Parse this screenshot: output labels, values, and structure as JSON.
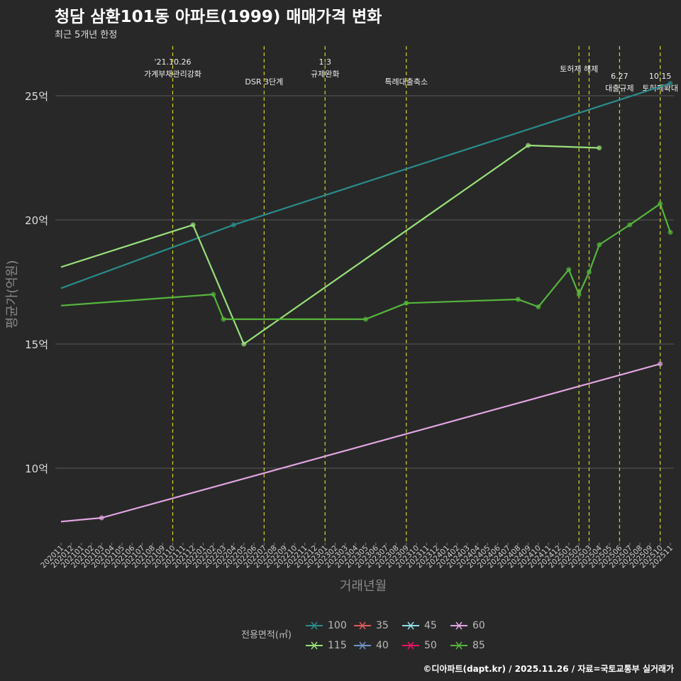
{
  "title": "청담 삼환101동 아파트(1999) 매매가격 변화",
  "subtitle": "최근 5개년 한정",
  "footer": "©디아파트(dapt.kr) / 2025.11.26 / 자료=국토교통부 실거래가",
  "chart_data": {
    "type": "line",
    "title": "청담 삼환101동 아파트(1999) 매매가격 변화",
    "xlabel": "거래년월",
    "ylabel": "평균가(억원)",
    "ylim": [
      7,
      27
    ],
    "yticks": [
      10,
      15,
      20,
      25
    ],
    "ytick_suffix": "억",
    "grid": "horizontal",
    "categories": [
      "202011",
      "202012",
      "202101",
      "202102",
      "202103",
      "202104",
      "202105",
      "202106",
      "202107",
      "202108",
      "202109",
      "202110",
      "202111",
      "202112",
      "202201",
      "202202",
      "202203",
      "202204",
      "202205",
      "202206",
      "202207",
      "202208",
      "202209",
      "202210",
      "202211",
      "202212",
      "202301",
      "202302",
      "202303",
      "202304",
      "202305",
      "202306",
      "202307",
      "202308",
      "202309",
      "202310",
      "202311",
      "202312",
      "202401",
      "202402",
      "202403",
      "202404",
      "202405",
      "202406",
      "202407",
      "202408",
      "202409",
      "202410",
      "202411",
      "202412",
      "202501",
      "202502",
      "202503",
      "202504",
      "202505",
      "202506",
      "202507",
      "202508",
      "202509",
      "202510",
      "202511"
    ],
    "legend_title": "전용면적(㎡)",
    "legend": [
      {
        "name": "100",
        "color": "#2a8c8c"
      },
      {
        "name": "35",
        "color": "#e05a5a"
      },
      {
        "name": "45",
        "color": "#8fdde8"
      },
      {
        "name": "60",
        "color": "#e3a6e3"
      },
      {
        "name": "115",
        "color": "#99e07a"
      },
      {
        "name": "40",
        "color": "#6f93c8"
      },
      {
        "name": "50",
        "color": "#ee1166"
      },
      {
        "name": "85",
        "color": "#55b63c"
      }
    ],
    "series": [
      {
        "name": "100",
        "color": "#2a8c8c",
        "points": [
          [
            "202011",
            17.25
          ],
          [
            "202204",
            19.8
          ],
          [
            "202511",
            25.5
          ]
        ],
        "markers": [
          "202204",
          "202511"
        ]
      },
      {
        "name": "115",
        "color": "#99e07a",
        "points": [
          [
            "202011",
            18.1
          ],
          [
            "202112",
            19.8
          ],
          [
            "202205",
            15.0
          ],
          [
            "202409",
            23.0
          ],
          [
            "202504",
            22.9
          ]
        ],
        "markers": [
          "202112",
          "202205",
          "202409",
          "202504"
        ]
      },
      {
        "name": "85",
        "color": "#55b63c",
        "points": [
          [
            "202011",
            16.55
          ],
          [
            "202202",
            17.0
          ],
          [
            "202203",
            16.0
          ],
          [
            "202305",
            16.0
          ],
          [
            "202309",
            16.65
          ],
          [
            "202408",
            16.8
          ],
          [
            "202410",
            16.5
          ],
          [
            "202501",
            18.0
          ],
          [
            "202502",
            17.0
          ],
          [
            "202503",
            17.9
          ],
          [
            "202504",
            19.0
          ],
          [
            "202507",
            19.8
          ],
          [
            "202510",
            20.65
          ],
          [
            "202511",
            19.5
          ]
        ],
        "markers": [
          "202202",
          "202203",
          "202305",
          "202309",
          "202408",
          "202410",
          "202501",
          "202502",
          "202503",
          "202504",
          "202507",
          "202510",
          "202511"
        ]
      },
      {
        "name": "60",
        "color": "#e3a6e3",
        "points": [
          [
            "202011",
            7.85
          ],
          [
            "202103",
            8.0
          ],
          [
            "202510",
            14.2
          ]
        ],
        "markers": [
          "202103",
          "202510"
        ]
      }
    ],
    "annotations": [
      {
        "x": "202110",
        "lines": [
          "'21.10.26",
          "가계부채관리강화"
        ]
      },
      {
        "x": "202207",
        "lines": [
          "DSR 3단계"
        ]
      },
      {
        "x": "202301",
        "lines": [
          "1.3",
          "규제완화"
        ]
      },
      {
        "x": "202309",
        "lines": [
          "특례대출축소"
        ]
      },
      {
        "x": "202502",
        "lines": [
          "토허제 해제"
        ]
      },
      {
        "x": "202503",
        "lines": [
          ""
        ]
      },
      {
        "x": "202506",
        "lines": [
          "6.27",
          "대출규제"
        ]
      },
      {
        "x": "202510",
        "lines": [
          "10.15",
          "토허제확대"
        ]
      }
    ]
  }
}
